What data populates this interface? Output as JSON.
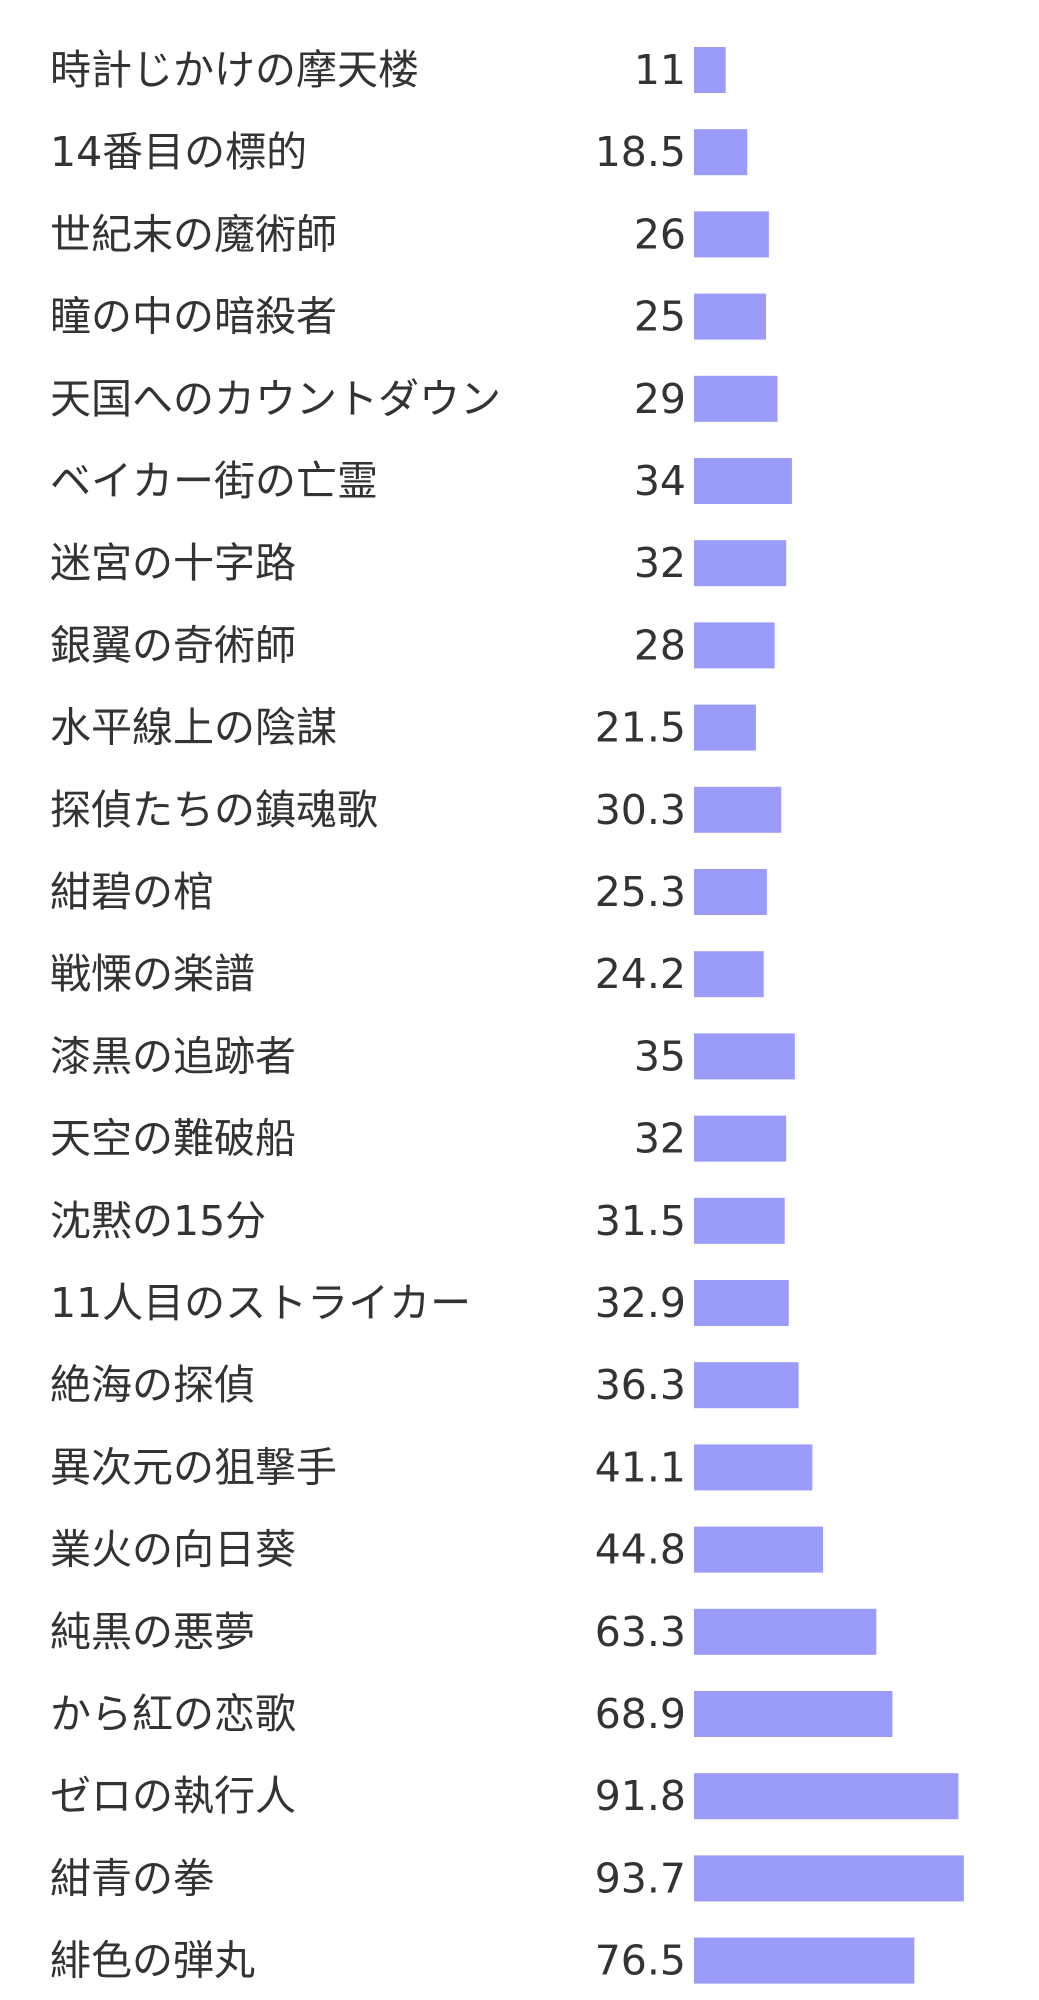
{
  "chart_data": {
    "type": "bar",
    "orientation": "horizontal",
    "bar_color": "#9b9bfa",
    "value_labels": "left-of-bar",
    "grid": false,
    "legend": "none",
    "xlim": [
      0,
      100
    ],
    "categories": [
      "時計じかけの摩天楼",
      "14番目の標的",
      "世紀末の魔術師",
      "瞳の中の暗殺者",
      "天国へのカウントダウン",
      "ベイカー街の亡霊",
      "迷宮の十字路",
      "銀翼の奇術師",
      "水平線上の陰謀",
      "探偵たちの鎮魂歌",
      "紺碧の棺",
      "戦慄の楽譜",
      "漆黒の追跡者",
      "天空の難破船",
      "沈黙の15分",
      "11人目のストライカー",
      "絶海の探偵",
      "異次元の狙撃手",
      "業火の向日葵",
      "純黒の悪夢",
      "から紅の恋歌",
      "ゼロの執行人",
      "紺青の拳",
      "緋色の弾丸"
    ],
    "values": [
      11,
      18.5,
      26,
      25,
      29,
      34,
      32,
      28,
      21.5,
      30.3,
      25.3,
      24.2,
      35,
      32,
      31.5,
      32.9,
      36.3,
      41.1,
      44.8,
      63.3,
      68.9,
      91.8,
      93.7,
      76.5
    ],
    "value_text": [
      "11",
      "18.5",
      "26",
      "25",
      "29",
      "34",
      "32",
      "28",
      "21.5",
      "30.3",
      "25.3",
      "24.2",
      "35",
      "32",
      "31.5",
      "32.9",
      "36.3",
      "41.1",
      "44.8",
      "63.3",
      "68.9",
      "91.8",
      "93.7",
      "76.5"
    ]
  }
}
